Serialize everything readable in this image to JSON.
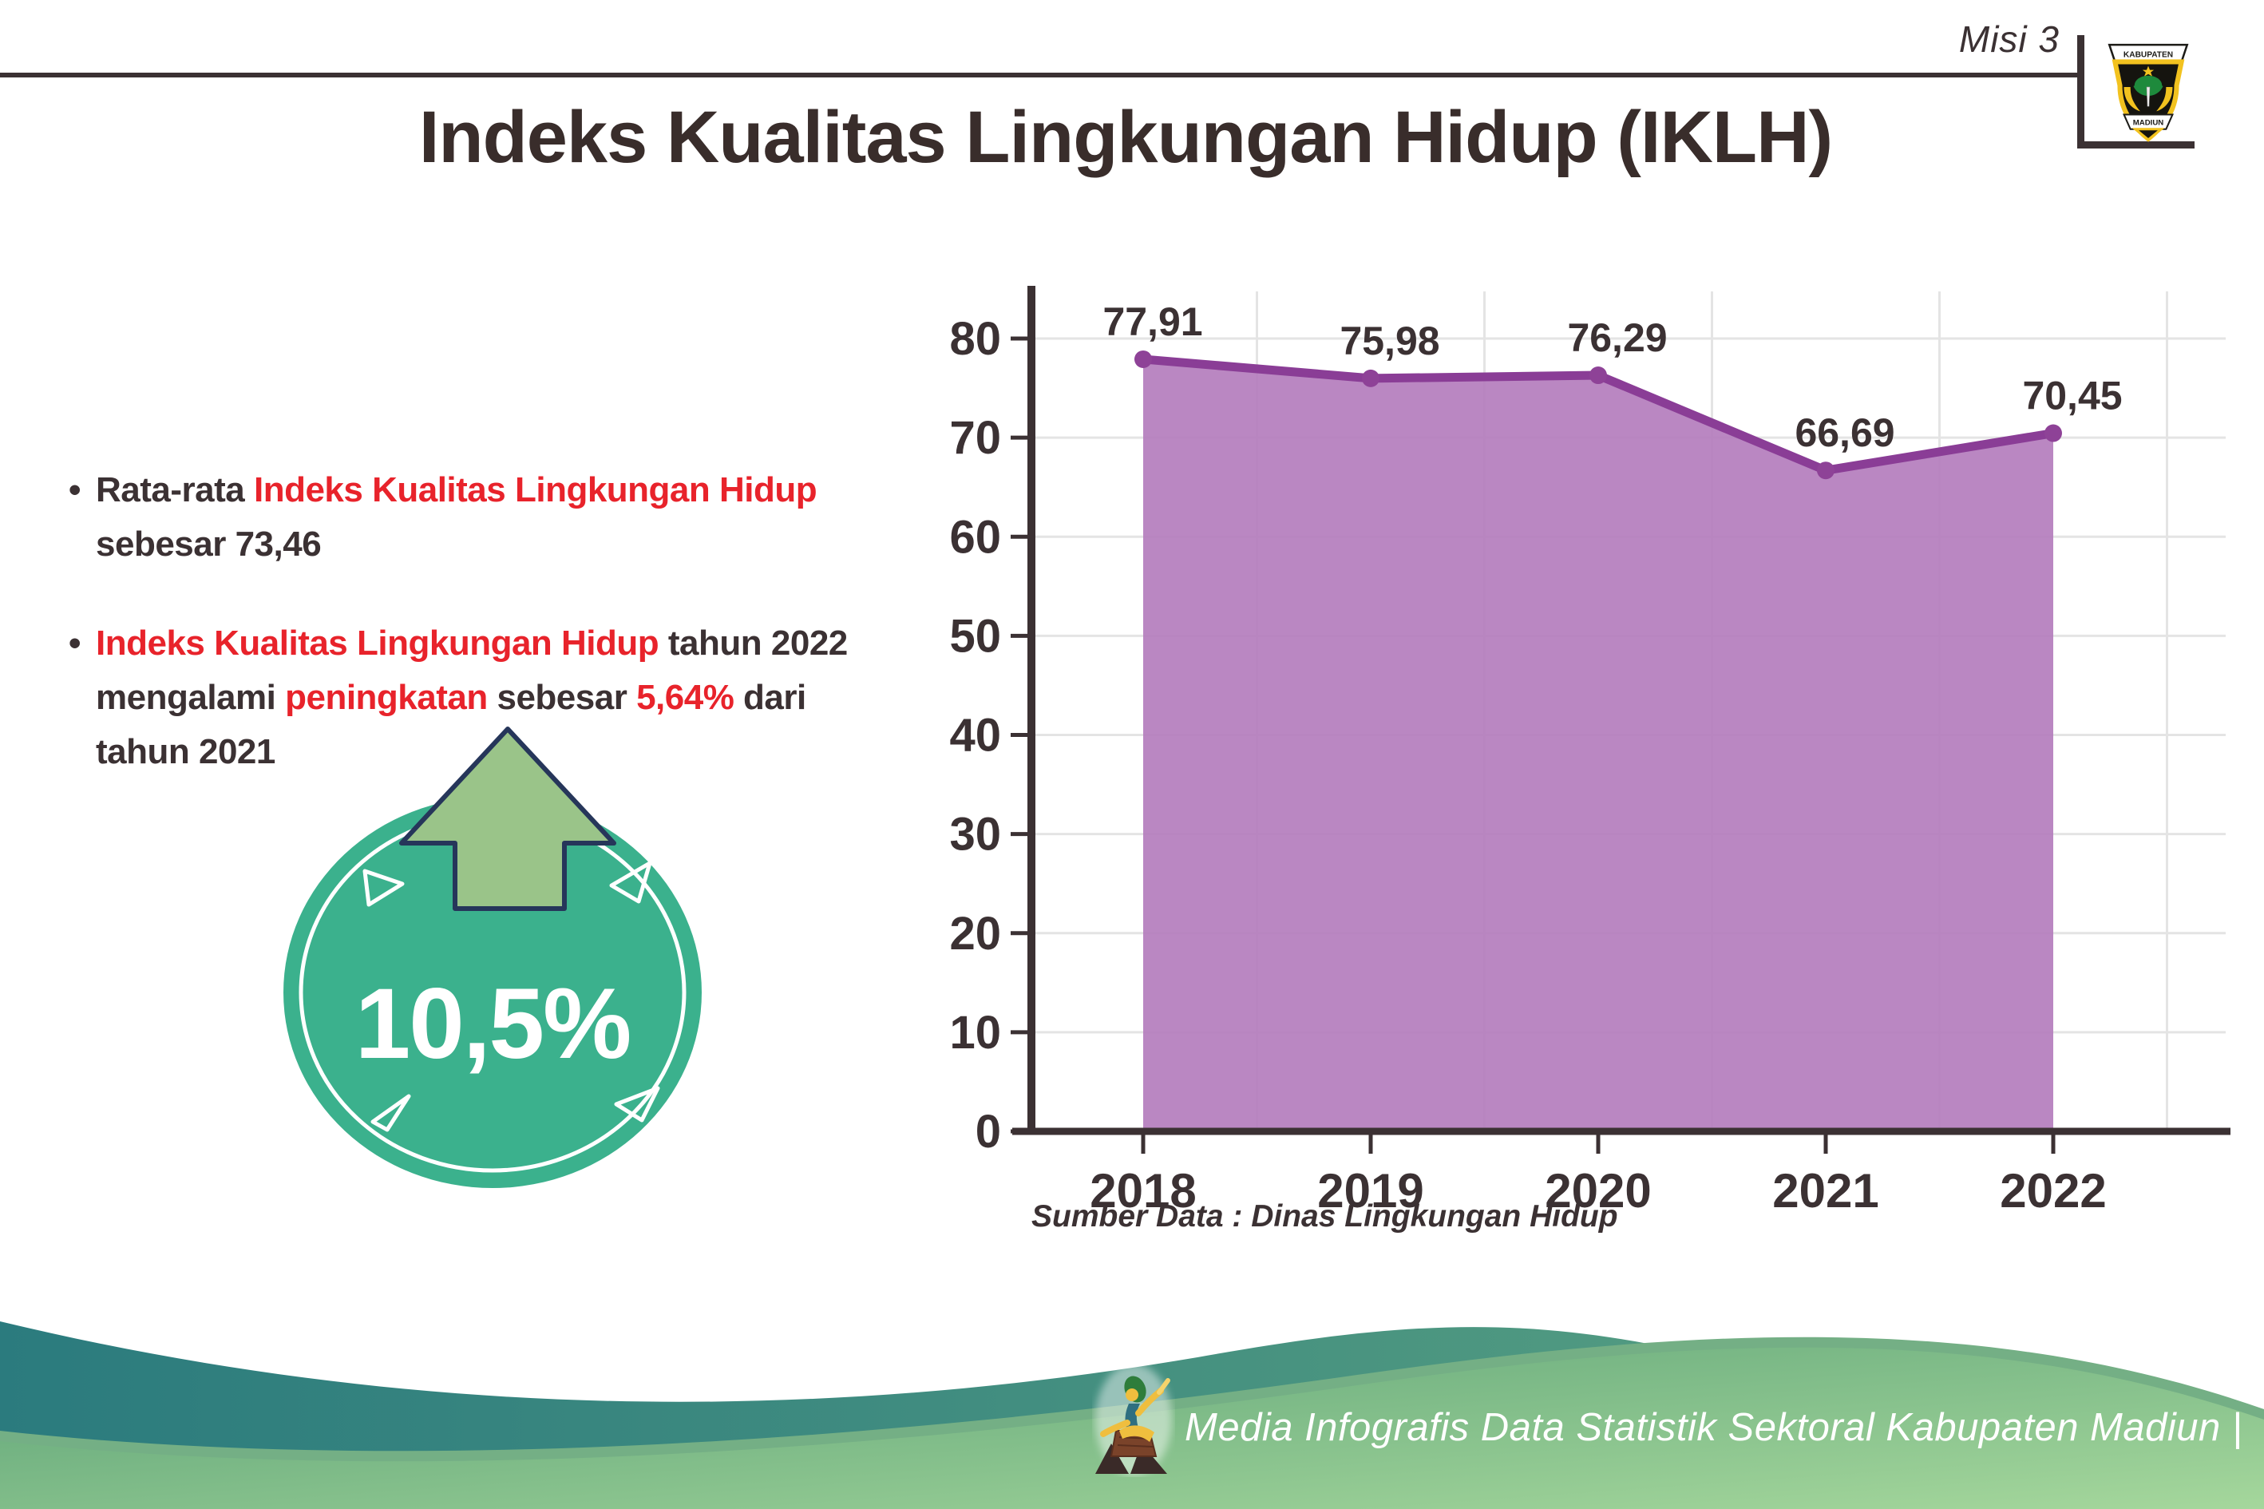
{
  "header": {
    "misi_label": "Misi 3",
    "title": "Indeks Kualitas Lingkungan Hidup (IKLH)",
    "logo": {
      "top_text": "KABUPATEN",
      "bottom_text": "MADIUN"
    }
  },
  "colors": {
    "text_dark": "#3B3133",
    "accent_red": "#E8232B",
    "badge_teal": "#3BB18D",
    "arrow_green": "#9AC489",
    "arrow_outline": "#26365A",
    "footer_teal": "#2B7B7E",
    "footer_green": "#7FC08A"
  },
  "bullets": [
    {
      "lines": [
        [
          {
            "text": "Rata-rata ",
            "color": "dark"
          },
          {
            "text": "Indeks Kualitas Lingkungan Hidup",
            "color": "red"
          }
        ],
        [
          {
            "text": "sebesar 73,46",
            "color": "dark"
          }
        ]
      ]
    },
    {
      "lines": [
        [
          {
            "text": "Indeks Kualitas Lingkungan Hidup",
            "color": "red"
          },
          {
            "text": " tahun 2022",
            "color": "dark"
          }
        ],
        [
          {
            "text": "mengalami ",
            "color": "dark"
          },
          {
            "text": "peningkatan",
            "color": "red"
          },
          {
            "text": " sebesar ",
            "color": "dark"
          },
          {
            "text": "5,64%",
            "color": "red"
          },
          {
            "text": " dari",
            "color": "dark"
          }
        ],
        [
          {
            "text": "tahun 2021",
            "color": "dark"
          }
        ]
      ]
    }
  ],
  "badge": {
    "value_label": "10,5%",
    "direction": "up"
  },
  "chart_data": {
    "type": "area",
    "categories": [
      "2018",
      "2019",
      "2020",
      "2021",
      "2022"
    ],
    "series": [
      {
        "name": "IKLH",
        "values": [
          77.91,
          75.98,
          76.29,
          66.69,
          70.45
        ]
      }
    ],
    "value_labels": [
      "77,91",
      "75,98",
      "76,29",
      "66,69",
      "70,45"
    ],
    "title": "",
    "xlabel": "",
    "ylabel": "",
    "ylim": [
      0,
      80
    ],
    "ytick_step": 10,
    "yticks": [
      0,
      10,
      20,
      30,
      40,
      50,
      60,
      70,
      80
    ],
    "grid": true,
    "legend": false,
    "fill_color": "#B27ABB",
    "line_color": "#8A3D96",
    "marker_color": "#8E4297",
    "axis_color": "#3B3133",
    "grid_color": "#E4E4E4",
    "label_color": "#3B3133"
  },
  "chart_source": "Sumber Data : Dinas Lingkungan Hidup",
  "footer": {
    "credit": "Media Infografis Data Statistik Sektoral Kabupaten Madiun |"
  }
}
